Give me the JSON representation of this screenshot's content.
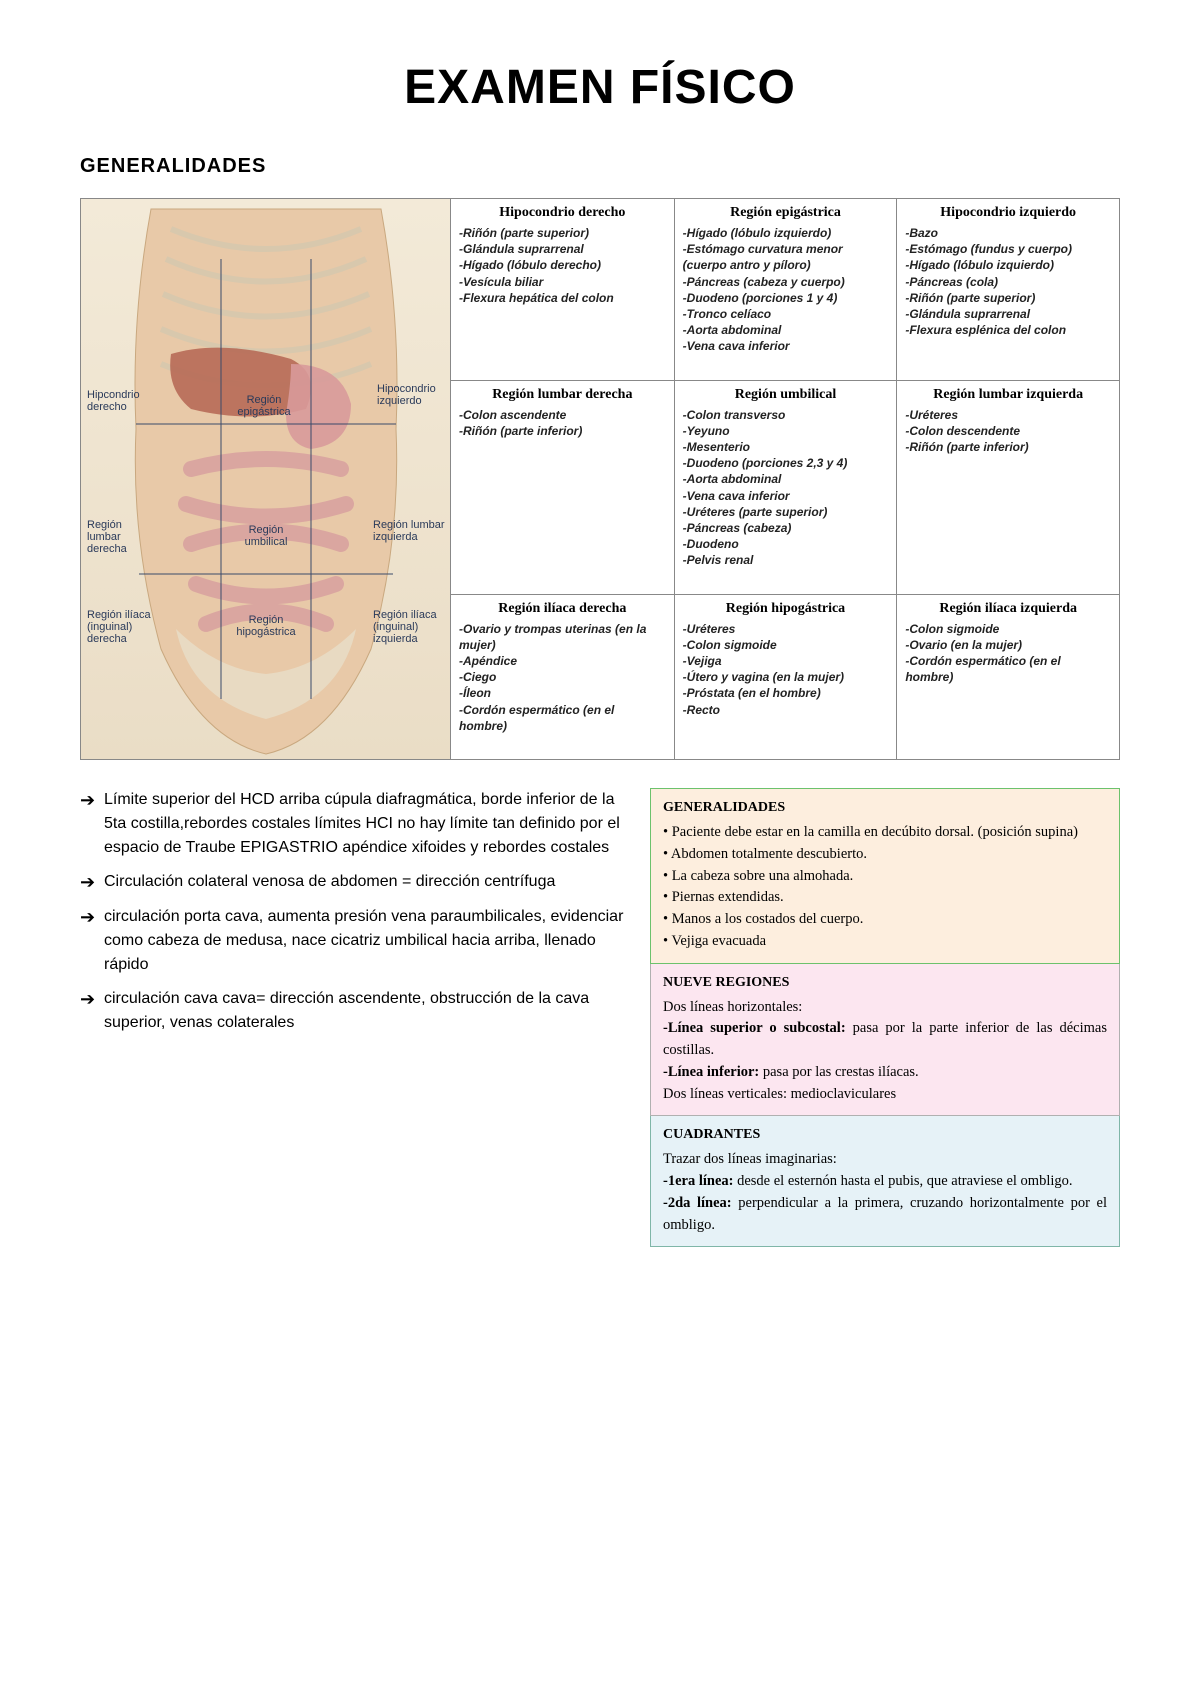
{
  "title": "EXAMEN FÍSICO",
  "section": "GENERALIDADES",
  "diagram_labels": {
    "r0c0": "Hipcondrio derecho",
    "r0c1": "Región epigástrica",
    "r0c2": "Hipocondrio izquierdo",
    "r1c0": "Región lumbar derecha",
    "r1c1": "Región umbilical",
    "r1c2": "Región lumbar izquierda",
    "r2c0": "Región ilíaca (inguinal) derecha",
    "r2c1": "Región hipogástrica",
    "r2c2": "Región ilíaca (inguinal) izquierda"
  },
  "regions": [
    {
      "title": "Hipocondrio derecho",
      "items": [
        "Riñón (parte superior)",
        "Glándula suprarrenal",
        "Hígado (lóbulo derecho)",
        "Vesícula biliar",
        "Flexura hepática del colon"
      ]
    },
    {
      "title": "Región epigástrica",
      "items": [
        "Hígado (lóbulo izquierdo)",
        "Estómago curvatura menor (cuerpo antro y píloro)",
        "Páncreas (cabeza y cuerpo)",
        "Duodeno (porciones 1 y 4)",
        "Tronco celíaco",
        "Aorta abdominal",
        "Vena cava inferior"
      ]
    },
    {
      "title": "Hipocondrio izquierdo",
      "items": [
        "Bazo",
        "Estómago (fundus y cuerpo)",
        "Hígado (lóbulo izquierdo)",
        "Páncreas (cola)",
        "Riñón (parte superior)",
        "Glándula suprarrenal",
        "Flexura esplénica del colon"
      ]
    },
    {
      "title": "Región lumbar derecha",
      "items": [
        "Colon ascendente",
        "Riñón (parte inferior)"
      ]
    },
    {
      "title": "Región umbilical",
      "items": [
        "Colon transverso",
        "Yeyuno",
        "Mesenterio",
        "Duodeno (porciones 2,3 y 4)",
        "Aorta abdominal",
        "Vena cava inferior",
        "Uréteres (parte superior)",
        "Páncreas (cabeza)",
        "Duodeno",
        "Pelvis renal"
      ]
    },
    {
      "title": "Región lumbar izquierda",
      "items": [
        "Uréteres",
        "Colon descendente",
        "Riñón (parte inferior)"
      ]
    },
    {
      "title": "Región ilíaca derecha",
      "items": [
        "Ovario y trompas uterinas (en la mujer)",
        "Apéndice",
        "Ciego",
        "Íleon",
        "Cordón espermático (en el hombre)"
      ]
    },
    {
      "title": "Región hipogástrica",
      "items": [
        "Uréteres",
        "Colon sigmoide",
        "Vejiga",
        "Útero y vagina (en la mujer)",
        "Próstata (en el hombre)",
        "Recto"
      ]
    },
    {
      "title": "Región ilíaca izquierda",
      "items": [
        "Colon sigmoide",
        "Ovario (en la mujer)",
        "Cordón espermático (en el hombre)"
      ]
    }
  ],
  "bullets": [
    "Límite superior del HCD arriba cúpula diafragmática, borde inferior de la 5ta costilla,rebordes costales límites HCI no hay límite tan definido por el espacio de Traube EPIGASTRIO apéndice xifoides y rebordes costales",
    "Circulación colateral venosa de abdomen = dirección centrífuga",
    "circulación porta cava, aumenta presión vena paraumbilicales, evidenciar como cabeza de medusa, nace cicatriz umbilical hacia arriba, llenado rápido",
    "circulación cava cava= dirección ascendente, obstrucción de la cava superior, venas colaterales"
  ],
  "side": {
    "p1": {
      "title": "GENERALIDADES",
      "items": [
        "Paciente debe estar en la camilla en decúbito dorsal. (posición supina)",
        "Abdomen totalmente descubierto.",
        "La cabeza sobre una almohada.",
        "Piernas extendidas.",
        "Manos a los costados del cuerpo.",
        "Vejiga evacuada"
      ]
    },
    "p2": {
      "title": "NUEVE REGIONES",
      "lead": "Dos líneas horizontales:",
      "l1_label": "-Línea superior o subcostal:",
      "l1_text": " pasa por la parte inferior de las décimas costillas.",
      "l2_label": "-Línea inferior:",
      "l2_text": " pasa por las crestas ilíacas.",
      "trail": "Dos líneas verticales: medioclaviculares"
    },
    "p3": {
      "title": "CUADRANTES",
      "lead": "Trazar dos líneas imaginarias:",
      "l1_label": "-1era línea:",
      "l1_text": " desde el esternón hasta el pubis, que atraviese el ombligo.",
      "l2_label": "-2da línea:",
      "l2_text": " perpendicular a la primera, cruzando horizontalmente por el ombligo."
    }
  },
  "colors": {
    "skin": "#e8c9a8",
    "organ": "#d89a9a",
    "liver": "#b76a57",
    "rib": "#e6dcc8",
    "grid": "#3a4a6a"
  }
}
